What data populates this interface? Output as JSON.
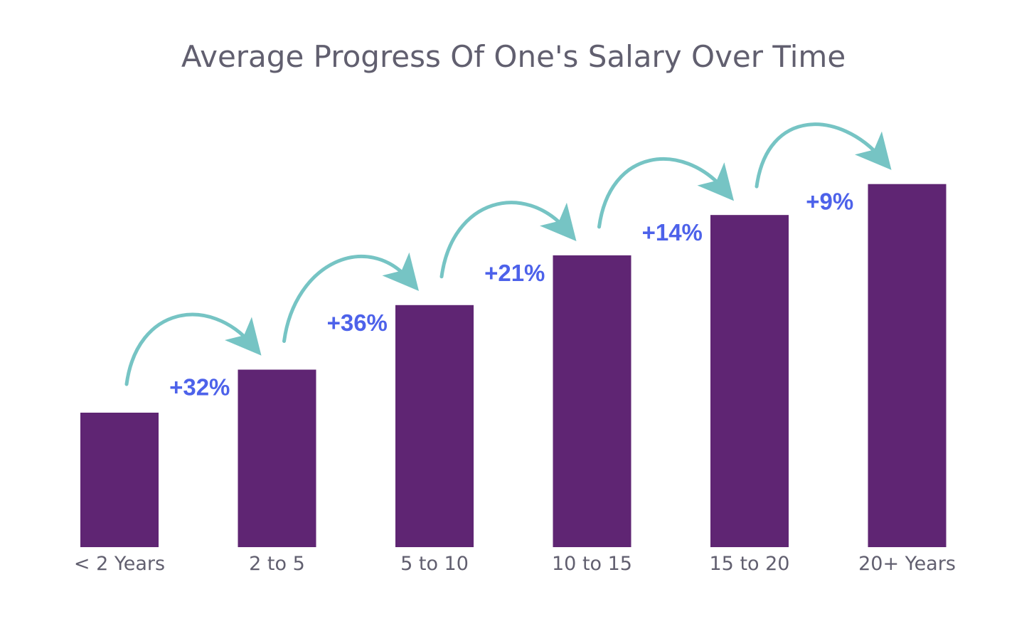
{
  "chart_data": {
    "type": "bar",
    "title": "Average Progress Of One's Salary Over Time",
    "xlabel": "",
    "ylabel": "",
    "categories": [
      "< 2 Years",
      "2 to 5",
      "5 to 10",
      "10 to 15",
      "15 to 20",
      "20+ Years"
    ],
    "values": [
      100,
      132,
      180,
      217,
      247,
      270
    ],
    "ylim": [
      0,
      300
    ],
    "growth_labels": [
      "+32%",
      "+36%",
      "+21%",
      "+14%",
      "+9%"
    ],
    "grid": false,
    "legend": "none",
    "colors": {
      "bar": "#5f2573",
      "arrow": "#76c4c4",
      "growth_text": "#4d62ea",
      "text": "#615f6f"
    }
  }
}
